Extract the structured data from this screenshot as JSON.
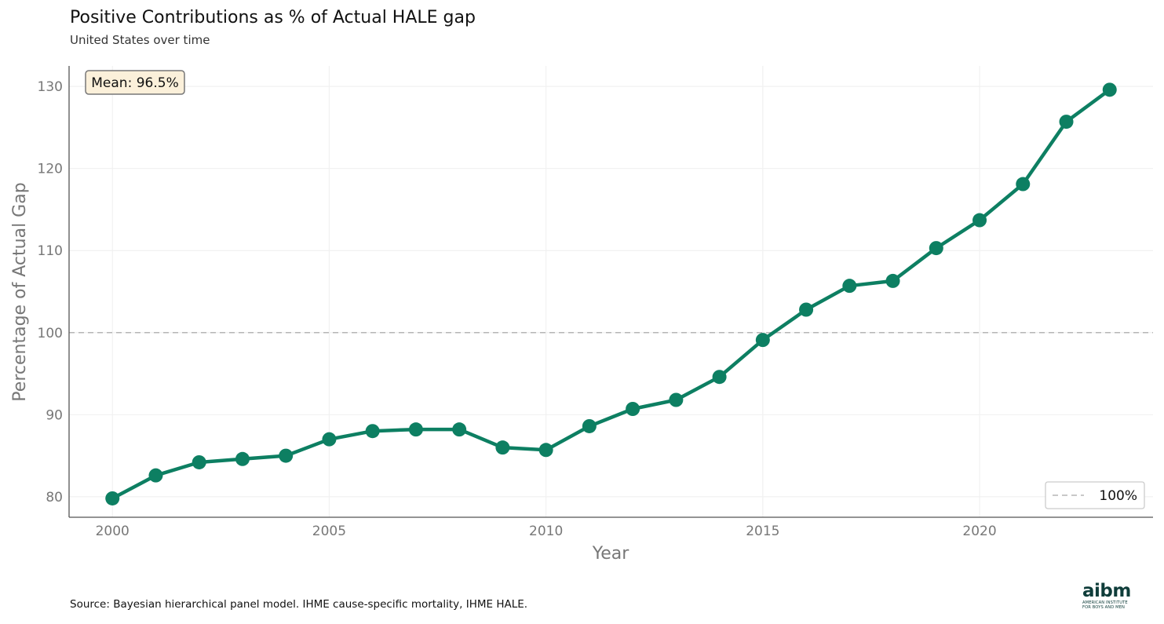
{
  "title": "Positive Contributions as % of Actual HALE gap",
  "subtitle": "United States over time",
  "caption": "Source: Bayesian hierarchical panel model. IHME cause-specific mortality, IHME HALE.",
  "logo": {
    "mark": "aibm",
    "line1": "AMERICAN INSTITUTE",
    "line2": "FOR BOYS AND MEN"
  },
  "chart_data": {
    "type": "line",
    "xlabel": "Year",
    "ylabel": "Percentage of Actual Gap",
    "xlim": [
      1999,
      2024
    ],
    "ylim": [
      77.5,
      132.5
    ],
    "x_ticks": [
      2000,
      2005,
      2010,
      2015,
      2020
    ],
    "y_ticks": [
      80,
      90,
      100,
      110,
      120,
      130
    ],
    "grid": true,
    "line_color": "#0d7f62",
    "series": [
      {
        "x": [
          2000,
          2001,
          2002,
          2003,
          2004,
          2005,
          2006,
          2007,
          2008,
          2009,
          2010,
          2011,
          2012,
          2013,
          2014,
          2015,
          2016,
          2017,
          2018,
          2019,
          2020,
          2021,
          2022,
          2023
        ],
        "values": [
          79.8,
          82.6,
          84.2,
          84.6,
          85.0,
          87.0,
          88.0,
          88.2,
          88.2,
          86.0,
          85.7,
          88.6,
          90.7,
          91.8,
          94.6,
          99.1,
          102.8,
          105.7,
          106.3,
          110.3,
          113.7,
          118.1,
          125.7,
          129.6
        ]
      }
    ],
    "reference_line": {
      "y": 100,
      "label": "100%",
      "color": "#b5b5b5"
    },
    "annotation": {
      "text": "Mean: 96.5%",
      "placement": "top-left",
      "fill": "#fbf0da"
    },
    "legend_position": "bottom-right"
  }
}
